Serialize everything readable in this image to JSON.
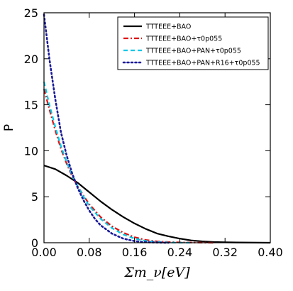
{
  "chart_data": {
    "type": "line",
    "title": "",
    "xlabel": "Σm_ν[eV]",
    "ylabel": "P",
    "xlim": [
      0.0,
      0.4
    ],
    "ylim": [
      0,
      25
    ],
    "x_ticks": [
      "0.00",
      "0.08",
      "0.16",
      "0.24",
      "0.32",
      "0.40"
    ],
    "y_ticks": [
      "0",
      "5",
      "10",
      "15",
      "20",
      "25"
    ],
    "grid": false,
    "legend_position": "top-right",
    "series": [
      {
        "name": "TTTEEE+BAO",
        "color": "#000000",
        "style": "solid",
        "x": [
          0.0,
          0.02,
          0.04,
          0.06,
          0.08,
          0.1,
          0.12,
          0.14,
          0.16,
          0.18,
          0.2,
          0.22,
          0.24,
          0.26,
          0.28,
          0.3,
          0.32,
          0.34,
          0.36,
          0.38,
          0.4
        ],
        "y": [
          8.4,
          8.0,
          7.3,
          6.5,
          5.5,
          4.5,
          3.6,
          2.8,
          2.1,
          1.5,
          1.0,
          0.7,
          0.45,
          0.25,
          0.15,
          0.08,
          0.05,
          0.03,
          0.02,
          0.01,
          0.0
        ]
      },
      {
        "name": "TTTEEE+BAO+τ0p055",
        "color": "#dd1111",
        "style": "dashdot",
        "x": [
          0.0,
          0.01,
          0.02,
          0.03,
          0.04,
          0.05,
          0.06,
          0.07,
          0.08,
          0.1,
          0.12,
          0.14,
          0.16,
          0.18,
          0.2,
          0.22,
          0.24,
          0.26,
          0.28,
          0.3
        ],
        "y": [
          16.7,
          14.4,
          12.2,
          10.2,
          8.6,
          7.2,
          6.1,
          5.1,
          4.2,
          2.8,
          1.8,
          1.1,
          0.6,
          0.3,
          0.15,
          0.08,
          0.04,
          0.02,
          0.01,
          0.0
        ]
      },
      {
        "name": "TTTEEE+BAO+PAN+τ0p055",
        "color": "#00c8e6",
        "style": "dashed",
        "x": [
          0.0,
          0.01,
          0.02,
          0.03,
          0.04,
          0.05,
          0.06,
          0.07,
          0.08,
          0.1,
          0.12,
          0.14,
          0.16,
          0.18,
          0.2,
          0.22,
          0.24,
          0.26
        ],
        "y": [
          17.5,
          14.9,
          12.6,
          10.5,
          8.8,
          7.3,
          6.1,
          5.0,
          4.0,
          2.6,
          1.6,
          0.9,
          0.45,
          0.2,
          0.08,
          0.03,
          0.01,
          0.0
        ]
      },
      {
        "name": "TTTEEE+BAO+PAN+R16+τ0p055",
        "color": "#1a1a99",
        "style": "dotted",
        "x": [
          0.0,
          0.01,
          0.02,
          0.03,
          0.04,
          0.05,
          0.06,
          0.07,
          0.08,
          0.09,
          0.1,
          0.12,
          0.14,
          0.16,
          0.18,
          0.2,
          0.22
        ],
        "y": [
          24.8,
          19.8,
          15.6,
          12.0,
          9.5,
          7.5,
          5.9,
          4.6,
          3.5,
          2.6,
          1.9,
          1.0,
          0.45,
          0.18,
          0.06,
          0.02,
          0.0
        ]
      }
    ]
  }
}
